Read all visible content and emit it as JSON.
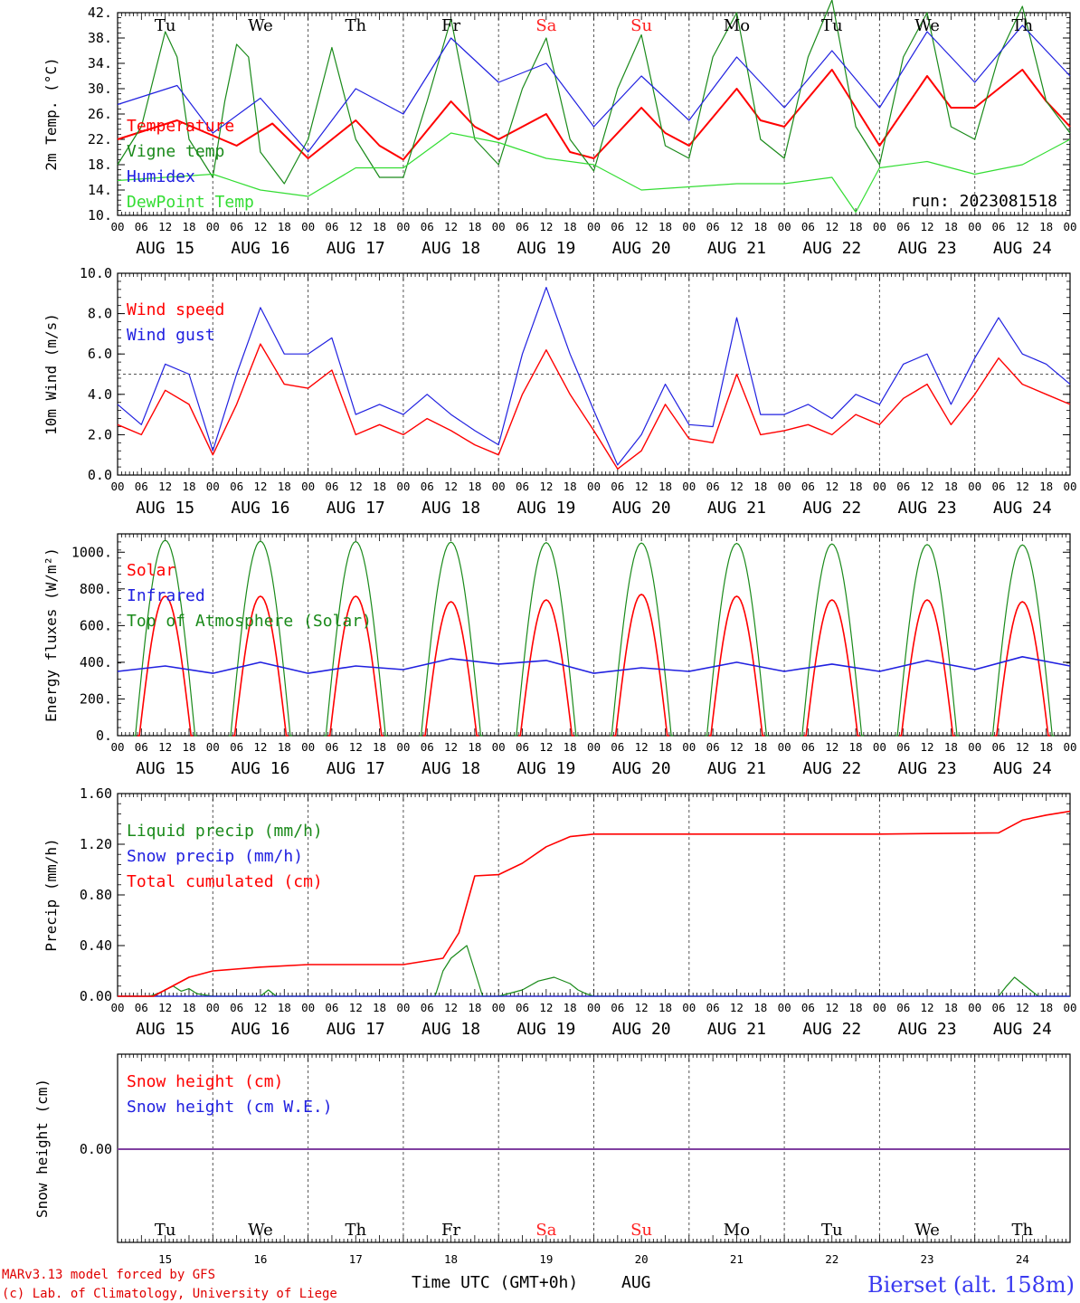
{
  "colors": {
    "red": "#ff0000",
    "darkgreen": "#1a8a1a",
    "blue": "#2020e0",
    "lightgreen": "#33dd33",
    "purple": "#8040a0",
    "weekend": "#ff2020"
  },
  "time_axis": {
    "hour_ticks": [
      "00",
      "06",
      "12",
      "18"
    ],
    "dates": [
      "AUG 15",
      "AUG 16",
      "AUG 17",
      "AUG 18",
      "AUG 19",
      "AUG 20",
      "AUG 21",
      "AUG 22",
      "AUG 23",
      "AUG 24"
    ],
    "days": [
      "Tu",
      "We",
      "Th",
      "Fr",
      "Sa",
      "Su",
      "Mo",
      "Tu",
      "We",
      "Th"
    ],
    "weekend_days": [
      4,
      5
    ],
    "day_numbers": [
      "15",
      "16",
      "17",
      "18",
      "19",
      "20",
      "21",
      "22",
      "23",
      "24"
    ],
    "month": "AUG",
    "xlabel": "Time UTC (GMT+0h)"
  },
  "footer": {
    "model": "MARv3.13 model forced by GFS",
    "copyright": "(c) Lab. of Climatology, University of Liege",
    "station": "Bierset (alt. 158m)"
  },
  "chart_data": [
    {
      "type": "line",
      "ylabel": "2m Temp. (°C)",
      "ylim": [
        10,
        42
      ],
      "yticks": [
        "10.",
        "14.",
        "18.",
        "22.",
        "26.",
        "30.",
        "34.",
        "38.",
        "42."
      ],
      "annotation": "run: 2023081518",
      "series": [
        {
          "name": "Temperature",
          "color": "red",
          "x": [
            0,
            15,
            30,
            39,
            48,
            60,
            66,
            72,
            84,
            90,
            96,
            108,
            114,
            120,
            132,
            138,
            144,
            156,
            162,
            168,
            180,
            186,
            192,
            204,
            210,
            216,
            228,
            234,
            240
          ],
          "y": [
            22,
            25,
            21,
            24.5,
            19,
            25,
            21,
            18.8,
            28,
            24,
            22,
            26,
            20,
            19,
            27,
            23,
            21,
            30,
            25,
            24,
            33,
            27,
            21,
            32,
            27,
            27,
            33,
            28,
            24
          ]
        },
        {
          "name": "Vigne temp",
          "color": "darkgreen",
          "x": [
            0,
            6,
            12,
            15,
            18,
            24,
            27,
            30,
            33,
            36,
            42,
            48,
            54,
            60,
            66,
            72,
            78,
            84,
            90,
            96,
            102,
            108,
            114,
            120,
            126,
            132,
            138,
            144,
            150,
            156,
            162,
            168,
            174,
            180,
            186,
            192,
            198,
            204,
            210,
            216,
            222,
            228,
            234,
            240
          ],
          "y": [
            18,
            24,
            39,
            35,
            22,
            16,
            28,
            37,
            35,
            20,
            15,
            22,
            36.5,
            22,
            16,
            16,
            28,
            41,
            22,
            18,
            30,
            38,
            22,
            17,
            30,
            38.5,
            21,
            19,
            35,
            42,
            22,
            19,
            35,
            44,
            24,
            18,
            35,
            42,
            24,
            22,
            35,
            43,
            28,
            23
          ]
        },
        {
          "name": "Humidex",
          "color": "blue",
          "x": [
            0,
            15,
            24,
            36,
            48,
            60,
            72,
            84,
            96,
            108,
            120,
            132,
            144,
            156,
            168,
            180,
            192,
            204,
            216,
            228,
            240
          ],
          "y": [
            27.5,
            30.5,
            23,
            28.5,
            20,
            30,
            26,
            38,
            31,
            34,
            24,
            32,
            25,
            35,
            27,
            36,
            27,
            39,
            31,
            40,
            32
          ]
        },
        {
          "name": "DewPoint Temp",
          "color": "lightgreen",
          "x": [
            0,
            12,
            24,
            36,
            48,
            60,
            72,
            84,
            96,
            108,
            120,
            132,
            144,
            156,
            168,
            180,
            186,
            192,
            204,
            216,
            228,
            240
          ],
          "y": [
            15.5,
            16,
            16.5,
            14,
            13,
            17.5,
            17.5,
            23,
            21.5,
            19,
            18,
            14,
            14.5,
            15,
            15,
            16,
            10.5,
            17.5,
            18.5,
            16.5,
            18,
            22
          ]
        }
      ],
      "legend": [
        "Temperature",
        "Vigne temp",
        "Humidex",
        "DewPoint Temp"
      ]
    },
    {
      "type": "line",
      "ylabel": "10m Wind (m/s)",
      "ylim": [
        0,
        10
      ],
      "yticks": [
        "0.0",
        "2.0",
        "4.0",
        "6.0",
        "8.0",
        "10.0"
      ],
      "reference_line": 5,
      "series": [
        {
          "name": "Wind speed",
          "color": "red",
          "x": [
            0,
            6,
            12,
            18,
            24,
            30,
            36,
            42,
            48,
            54,
            60,
            66,
            72,
            78,
            84,
            90,
            96,
            102,
            108,
            114,
            120,
            126,
            132,
            138,
            144,
            150,
            156,
            162,
            168,
            174,
            180,
            186,
            192,
            198,
            204,
            210,
            216,
            222,
            228,
            234,
            240
          ],
          "y": [
            2.5,
            2,
            4.2,
            3.5,
            1,
            3.5,
            6.5,
            4.5,
            4.3,
            5.2,
            2,
            2.5,
            2,
            2.8,
            2.2,
            1.5,
            1,
            4,
            6.2,
            4,
            2.2,
            0.3,
            1.2,
            3.5,
            1.8,
            1.6,
            5,
            2,
            2.2,
            2.5,
            2,
            3,
            2.5,
            3.8,
            4.5,
            2.5,
            4,
            5.8,
            4.5,
            4,
            3.5
          ]
        },
        {
          "name": "Wind gust",
          "color": "blue",
          "x": [
            0,
            6,
            12,
            18,
            24,
            30,
            36,
            42,
            48,
            54,
            60,
            66,
            72,
            78,
            84,
            90,
            96,
            102,
            108,
            114,
            120,
            126,
            132,
            138,
            144,
            150,
            156,
            162,
            168,
            174,
            180,
            186,
            192,
            198,
            204,
            210,
            216,
            222,
            228,
            234,
            240
          ],
          "y": [
            3.5,
            2.5,
            5.5,
            5,
            1.2,
            5,
            8.3,
            6,
            6,
            6.8,
            3,
            3.5,
            3,
            4,
            3,
            2.2,
            1.5,
            6,
            9.3,
            6,
            3.2,
            0.5,
            2,
            4.5,
            2.5,
            2.4,
            7.8,
            3,
            3,
            3.5,
            2.8,
            4,
            3.5,
            5.5,
            6,
            3.5,
            5.8,
            7.8,
            6,
            5.5,
            4.5
          ]
        }
      ],
      "legend": [
        "Wind speed",
        "Wind gust"
      ]
    },
    {
      "type": "line",
      "ylabel": "Energy fluxes (W/m²)",
      "ylim": [
        0,
        1100
      ],
      "yticks": [
        "0.",
        "200.",
        "400.",
        "600.",
        "800.",
        "1000."
      ],
      "series": [
        {
          "name": "Solar",
          "color": "red",
          "peaks": [
            760,
            760,
            760,
            730,
            740,
            770,
            760,
            740,
            740,
            730
          ]
        },
        {
          "name": "Infrared",
          "color": "blue",
          "x": [
            0,
            12,
            24,
            36,
            48,
            60,
            72,
            84,
            96,
            108,
            120,
            132,
            144,
            156,
            168,
            180,
            192,
            204,
            216,
            228,
            240
          ],
          "y": [
            350,
            380,
            340,
            400,
            340,
            380,
            360,
            420,
            390,
            410,
            340,
            370,
            350,
            400,
            350,
            390,
            350,
            410,
            360,
            430,
            380
          ]
        },
        {
          "name": "Top of Atmosphere (Solar)",
          "color": "darkgreen",
          "peaks": [
            1065,
            1060,
            1058,
            1055,
            1052,
            1050,
            1048,
            1045,
            1042,
            1040
          ]
        }
      ],
      "legend": [
        "Solar",
        "Infrared",
        "Top of Atmosphere (Solar)"
      ]
    },
    {
      "type": "line",
      "ylabel": "Precip (mm/h)",
      "ylim": [
        0,
        1.6
      ],
      "yticks": [
        "0.00",
        "0.40",
        "0.80",
        "1.20",
        "1.60"
      ],
      "series": [
        {
          "name": "Liquid precip (mm/h)",
          "color": "darkgreen",
          "x": [
            0,
            8,
            10,
            12,
            14,
            16,
            18,
            20,
            24,
            30,
            36,
            38,
            40,
            72,
            80,
            82,
            84,
            86,
            88,
            90,
            92,
            96,
            102,
            106,
            110,
            114,
            116,
            118,
            120,
            222,
            224,
            226,
            228,
            230,
            232,
            240
          ],
          "y": [
            0,
            0,
            0.02,
            0.05,
            0.08,
            0.04,
            0.06,
            0.02,
            0,
            0,
            0,
            0.05,
            0,
            0,
            0,
            0.2,
            0.3,
            0.35,
            0.4,
            0.2,
            0,
            0,
            0.05,
            0.12,
            0.15,
            0.1,
            0.05,
            0.02,
            0,
            0,
            0.08,
            0.15,
            0.1,
            0.05,
            0,
            0
          ]
        },
        {
          "name": "Snow precip (mm/h)",
          "color": "blue",
          "x": [
            0,
            240
          ],
          "y": [
            0,
            0
          ]
        },
        {
          "name": "Total cumulated (cm)",
          "color": "red",
          "x": [
            0,
            9,
            12,
            18,
            24,
            36,
            48,
            60,
            72,
            82,
            86,
            90,
            96,
            102,
            108,
            114,
            120,
            144,
            168,
            192,
            222,
            228,
            234,
            240
          ],
          "y": [
            0,
            0,
            0.05,
            0.15,
            0.2,
            0.23,
            0.25,
            0.25,
            0.25,
            0.3,
            0.5,
            0.95,
            0.96,
            1.05,
            1.18,
            1.26,
            1.28,
            1.28,
            1.28,
            1.28,
            1.29,
            1.39,
            1.43,
            1.46
          ]
        }
      ],
      "legend": [
        "Liquid precip (mm/h)",
        "Snow precip (mm/h)",
        "Total cumulated (cm)"
      ]
    },
    {
      "type": "line",
      "ylabel": "Snow height (cm)",
      "yticks": [
        "0.00"
      ],
      "series": [
        {
          "name": "Snow height (cm)",
          "color": "red",
          "x": [
            0,
            240
          ],
          "y": [
            0,
            0
          ]
        },
        {
          "name": "Snow height (cm W.E.)",
          "color": "blue",
          "x": [
            0,
            240
          ],
          "y": [
            0,
            0
          ]
        }
      ],
      "legend": [
        "Snow height (cm)",
        "Snow height (cm W.E.)"
      ]
    }
  ]
}
